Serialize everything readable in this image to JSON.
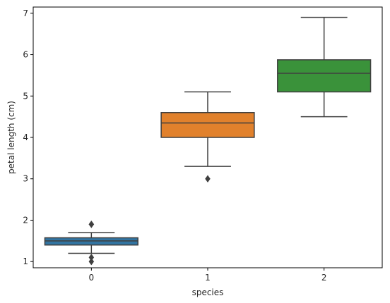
{
  "chart_data": {
    "type": "box",
    "xlabel": "species",
    "ylabel": "petal length (cm)",
    "categories": [
      "0",
      "1",
      "2"
    ],
    "ylim": [
      0.85,
      7.15
    ],
    "yticks": [
      "1",
      "2",
      "3",
      "4",
      "5",
      "6",
      "7"
    ],
    "grid": false,
    "legend": "none",
    "boxes": [
      {
        "category": "0",
        "whisker_low": 1.2,
        "q1": 1.4,
        "median": 1.5,
        "q3": 1.575,
        "whisker_high": 1.7,
        "outliers": [
          1.0,
          1.1,
          1.9,
          1.9
        ],
        "color": "#3274a1"
      },
      {
        "category": "1",
        "whisker_low": 3.3,
        "q1": 4.0,
        "median": 4.35,
        "q3": 4.6,
        "whisker_high": 5.1,
        "outliers": [
          3.0
        ],
        "color": "#e1812c"
      },
      {
        "category": "2",
        "whisker_low": 4.5,
        "q1": 5.1,
        "median": 5.55,
        "q3": 5.875,
        "whisker_high": 6.9,
        "outliers": [],
        "color": "#3a923a"
      }
    ],
    "line_color": "#3f3f3f"
  }
}
